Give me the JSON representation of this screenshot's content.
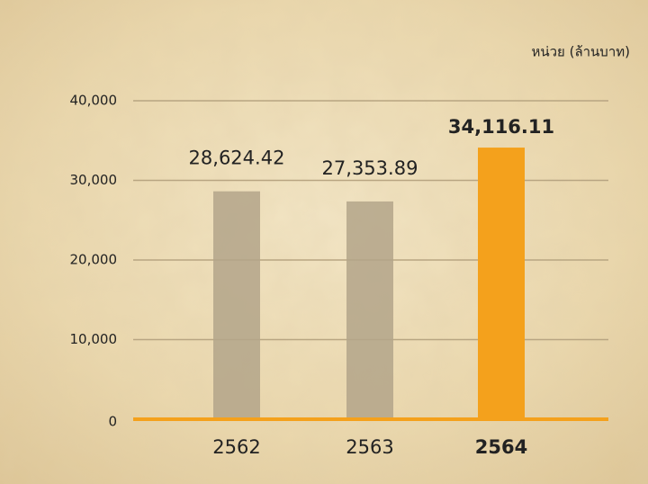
{
  "chart_data": {
    "type": "bar",
    "unit_label": "หน่วย (ล้านบาท)",
    "categories": [
      "2562",
      "2563",
      "2564"
    ],
    "values": [
      28624.42,
      27353.89,
      34116.11
    ],
    "value_labels": [
      "28,624.42",
      "27,353.89",
      "34,116.11"
    ],
    "colors": [
      "#b3a58a",
      "#b3a58a",
      "#f4a11c"
    ],
    "highlight": 2,
    "ylim": [
      0,
      40000
    ],
    "yticks": [
      0,
      {
        "value": 10000,
        "label": "10,000"
      },
      {
        "value": 20000,
        "label": "20,000"
      },
      {
        "value": 30000,
        "label": "30,000"
      },
      {
        "value": 40000,
        "label": "40,000"
      }
    ],
    "grid": true
  }
}
